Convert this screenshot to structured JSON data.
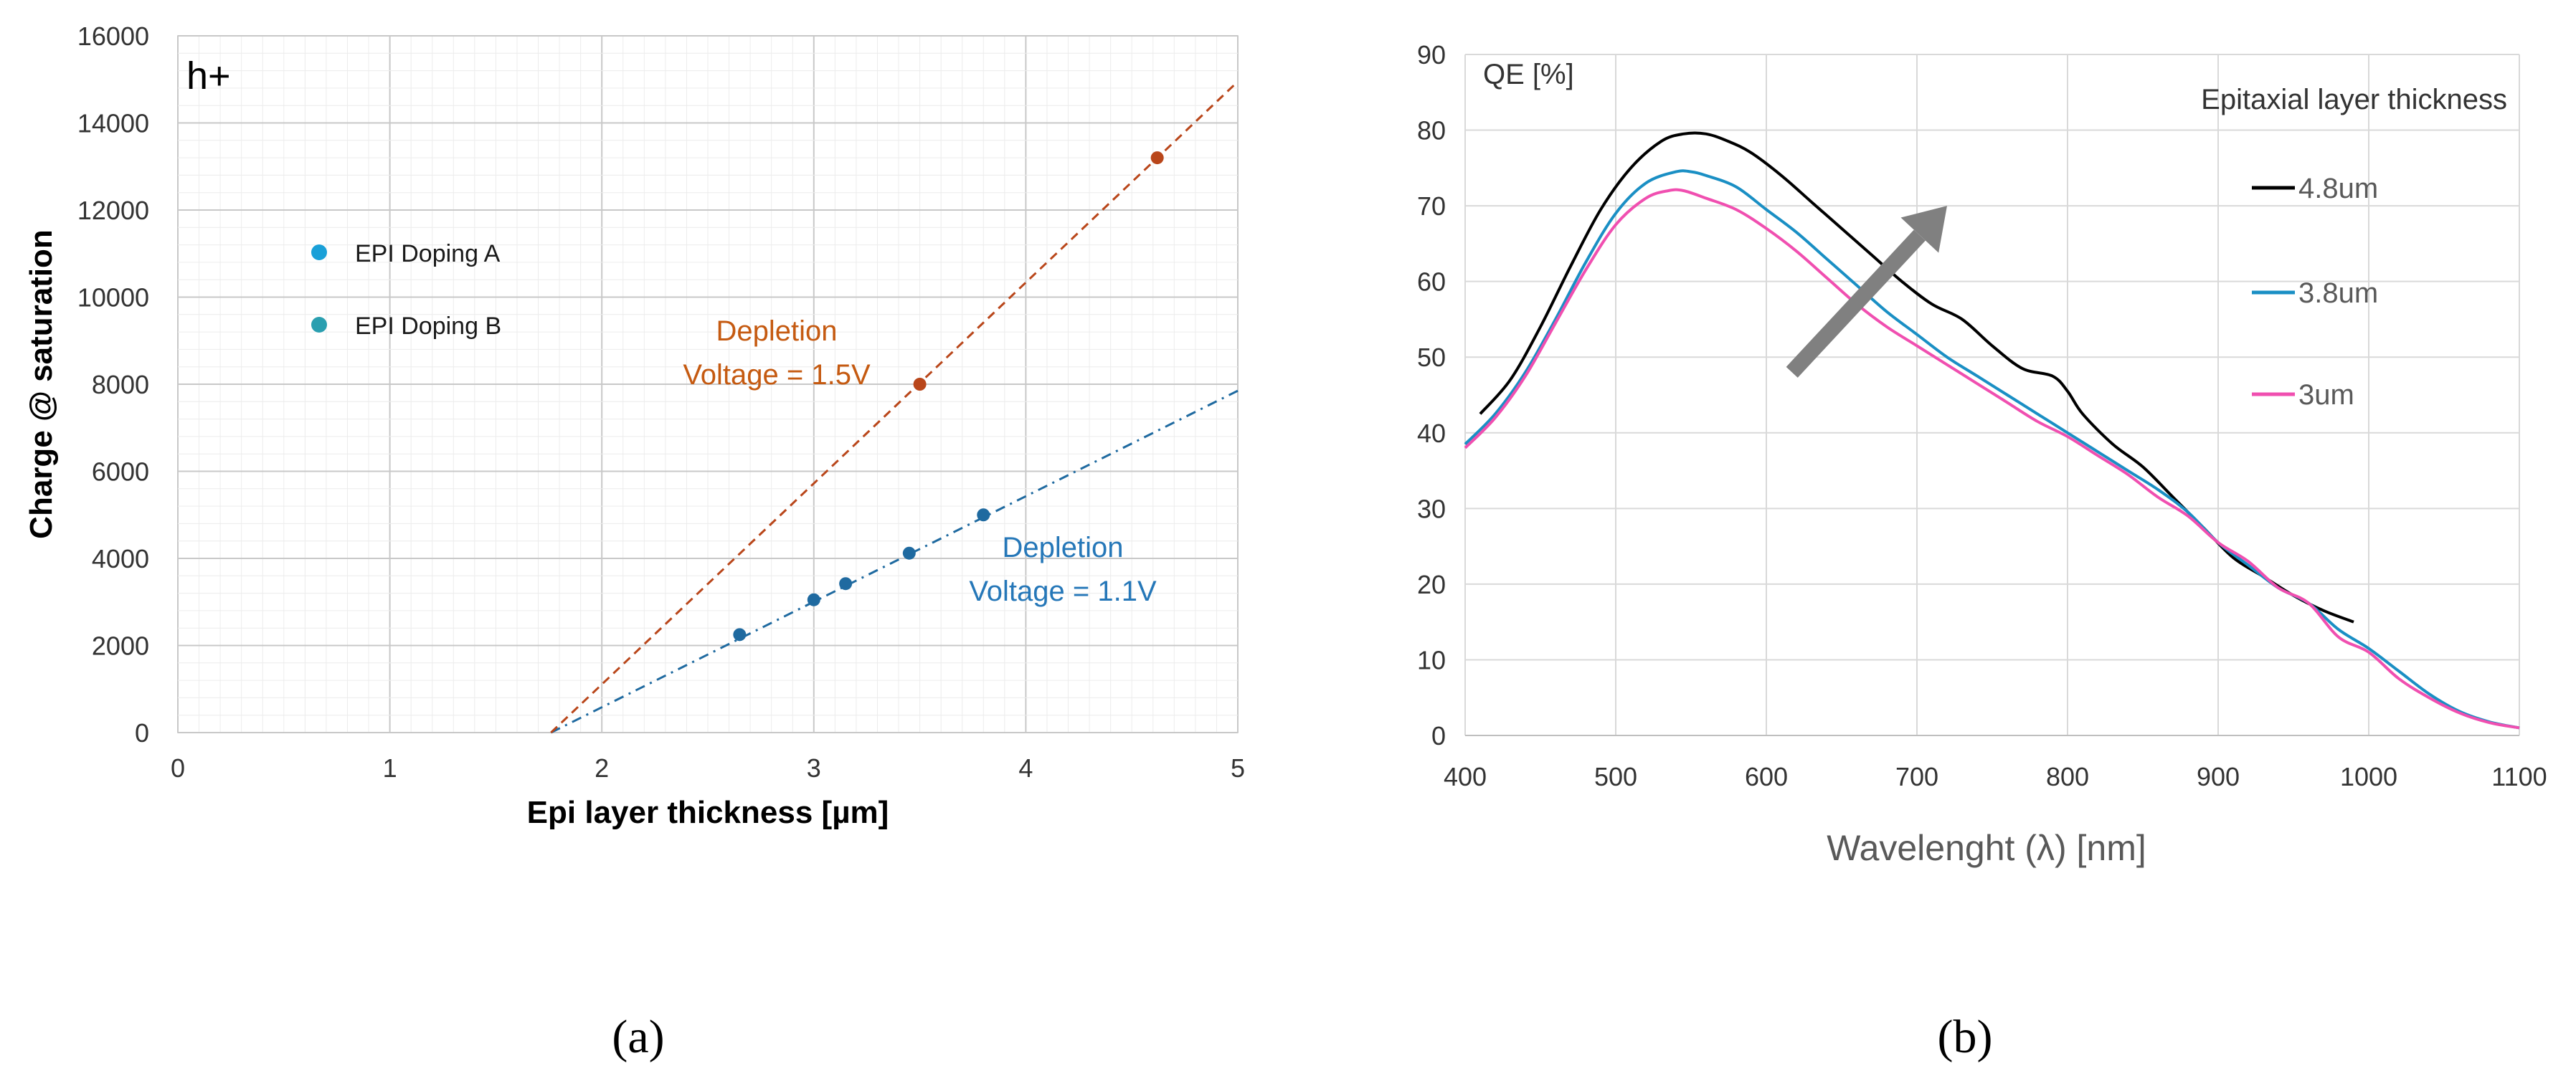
{
  "chart_data": [
    {
      "id": "a",
      "type": "scatter",
      "panel_label": "(a)",
      "title": "",
      "annotation": "h+",
      "xlabel": "Epi layer thickness [µm]",
      "ylabel": "Charge @ saturation",
      "xlim": [
        0,
        5
      ],
      "ylim": [
        0,
        16000
      ],
      "xticks": [
        0,
        1,
        2,
        3,
        4,
        5
      ],
      "yticks": [
        0,
        2000,
        4000,
        6000,
        8000,
        10000,
        12000,
        14000,
        16000
      ],
      "grid": true,
      "legend_position": "upper-left",
      "series": [
        {
          "name": "EPI Doping  A",
          "color": "#1f6aa0",
          "legend_color": "#1aa0d8",
          "points": [
            [
              2.65,
              2250
            ],
            [
              3.0,
              3050
            ],
            [
              3.15,
              3420
            ],
            [
              3.45,
              4120
            ],
            [
              3.8,
              5000
            ]
          ],
          "fit_line": {
            "from": [
              1.76,
              0
            ],
            "to": [
              5.0,
              7850
            ],
            "style": "dash-dot"
          },
          "label_lines": [
            "Depletion",
            "Voltage = 1.1V"
          ],
          "label_color": "#2577b8"
        },
        {
          "name": "EPI Doping  B",
          "color": "#b9461a",
          "legend_color": "#2a9fb0",
          "points": [
            [
              3.5,
              8000
            ],
            [
              4.62,
              13200
            ]
          ],
          "fit_line": {
            "from": [
              1.76,
              0
            ],
            "to": [
              5.0,
              14950
            ],
            "style": "dashed"
          },
          "label_lines": [
            "Depletion",
            "Voltage = 1.5V"
          ],
          "label_color": "#c55a11"
        }
      ]
    },
    {
      "id": "b",
      "type": "line",
      "panel_label": "(b)",
      "title": "",
      "ylabel_inline": "QE [%]",
      "xlabel": "Wavelenght (λ) [nm]",
      "xlim": [
        400,
        1100
      ],
      "ylim": [
        0,
        90
      ],
      "xticks": [
        400,
        500,
        600,
        700,
        800,
        900,
        1000,
        1100
      ],
      "yticks": [
        0,
        10,
        20,
        30,
        40,
        50,
        60,
        70,
        80,
        90
      ],
      "grid": true,
      "legend_title": "Epitaxial layer thickness",
      "legend_position": "right",
      "arrow": {
        "from": [
          617,
          48
        ],
        "to": [
          720,
          70
        ],
        "color": "#808080"
      },
      "series": [
        {
          "name": "4.8um",
          "color": "#000000",
          "x": [
            410,
            430,
            450,
            470,
            490,
            510,
            530,
            545,
            560,
            575,
            590,
            610,
            630,
            650,
            670,
            690,
            710,
            730,
            750,
            770,
            790,
            800,
            810,
            830,
            850,
            870,
            890,
            910,
            930,
            950,
            970,
            990
          ],
          "y": [
            42.5,
            47,
            54,
            62,
            69.5,
            75,
            78.5,
            79.5,
            79.5,
            78.5,
            77,
            74,
            70.5,
            67,
            63.5,
            60,
            57,
            55,
            51.5,
            48.5,
            47.5,
            45.5,
            42.5,
            38.5,
            35.5,
            31.5,
            27.5,
            23.5,
            21,
            18.5,
            16.5,
            15
          ]
        },
        {
          "name": "3.8um",
          "color": "#1a8fc4",
          "x": [
            400,
            420,
            440,
            460,
            480,
            500,
            520,
            540,
            550,
            560,
            580,
            600,
            620,
            640,
            660,
            680,
            700,
            720,
            740,
            760,
            780,
            800,
            820,
            840,
            860,
            880,
            900,
            920,
            940,
            960,
            980,
            1000,
            1020,
            1040,
            1060,
            1080,
            1100
          ],
          "y": [
            38.5,
            42.5,
            48,
            55,
            62.5,
            69,
            73,
            74.5,
            74.5,
            74,
            72.5,
            69.5,
            66.5,
            63,
            59.5,
            56,
            53,
            50,
            47.5,
            45,
            42.5,
            40,
            37.5,
            35,
            32.5,
            29.5,
            25.5,
            22.5,
            19.5,
            17.5,
            14,
            11.5,
            8.5,
            5.5,
            3.2,
            1.8,
            1
          ]
        },
        {
          "name": "3um",
          "color": "#f04fb0",
          "x": [
            400,
            420,
            440,
            460,
            480,
            500,
            520,
            535,
            545,
            560,
            580,
            600,
            620,
            640,
            660,
            680,
            700,
            720,
            740,
            760,
            780,
            800,
            820,
            840,
            860,
            880,
            900,
            920,
            940,
            960,
            980,
            1000,
            1020,
            1040,
            1060,
            1080,
            1100
          ],
          "y": [
            38,
            42,
            47.5,
            54.5,
            61.5,
            67.5,
            71,
            72,
            72,
            71,
            69.5,
            67,
            64,
            60.5,
            57,
            54,
            51.5,
            49,
            46.5,
            44,
            41.5,
            39.5,
            37,
            34.5,
            31.5,
            29,
            25.5,
            23,
            19.5,
            17.5,
            13,
            11,
            7.5,
            5,
            3,
            1.7,
            1
          ]
        }
      ]
    }
  ]
}
